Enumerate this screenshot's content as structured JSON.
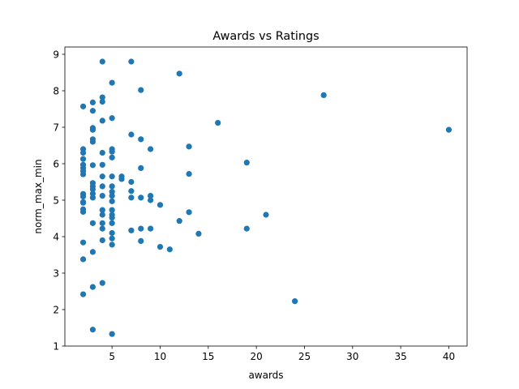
{
  "chart_data": {
    "type": "scatter",
    "title": "Awards vs Ratings",
    "xlabel": "awards",
    "ylabel": "norm_max_min",
    "xlim": [
      0.1,
      41.9
    ],
    "ylim": [
      1.0,
      9.2
    ],
    "xticks": [
      5,
      10,
      15,
      20,
      25,
      30,
      35,
      40
    ],
    "yticks": [
      1,
      2,
      3,
      4,
      5,
      6,
      7,
      8,
      9
    ],
    "grid": false,
    "color": "#1f77b4",
    "series": [
      {
        "points": [
          [
            2,
            7.57
          ],
          [
            2,
            6.4
          ],
          [
            2,
            6.3
          ],
          [
            2,
            6.13
          ],
          [
            2,
            5.97
          ],
          [
            2,
            5.88
          ],
          [
            2,
            5.8
          ],
          [
            2,
            5.71
          ],
          [
            2,
            5.17
          ],
          [
            2,
            5.1
          ],
          [
            2,
            4.95
          ],
          [
            2,
            4.93
          ],
          [
            2,
            4.75
          ],
          [
            2,
            4.68
          ],
          [
            2,
            3.84
          ],
          [
            2,
            3.38
          ],
          [
            2,
            2.42
          ],
          [
            3,
            7.68
          ],
          [
            3,
            7.45
          ],
          [
            3,
            6.98
          ],
          [
            3,
            6.93
          ],
          [
            3,
            6.67
          ],
          [
            3,
            6.6
          ],
          [
            3,
            5.96
          ],
          [
            3,
            5.47
          ],
          [
            3,
            5.38
          ],
          [
            3,
            5.3
          ],
          [
            3,
            5.18
          ],
          [
            3,
            5.07
          ],
          [
            3,
            4.37
          ],
          [
            3,
            3.58
          ],
          [
            3,
            2.62
          ],
          [
            3,
            1.45
          ],
          [
            4,
            8.8
          ],
          [
            4,
            7.82
          ],
          [
            4,
            7.7
          ],
          [
            4,
            7.18
          ],
          [
            4,
            6.3
          ],
          [
            4,
            5.97
          ],
          [
            4,
            5.65
          ],
          [
            4,
            5.38
          ],
          [
            4,
            5.12
          ],
          [
            4,
            4.73
          ],
          [
            4,
            4.6
          ],
          [
            4,
            4.37
          ],
          [
            4,
            4.22
          ],
          [
            4,
            3.9
          ],
          [
            4,
            2.73
          ],
          [
            5,
            8.22
          ],
          [
            5,
            7.25
          ],
          [
            5,
            6.4
          ],
          [
            5,
            6.33
          ],
          [
            5,
            6.17
          ],
          [
            5,
            5.65
          ],
          [
            5,
            5.38
          ],
          [
            5,
            5.23
          ],
          [
            5,
            5.12
          ],
          [
            5,
            4.97
          ],
          [
            5,
            4.73
          ],
          [
            5,
            4.6
          ],
          [
            5,
            4.52
          ],
          [
            5,
            4.37
          ],
          [
            5,
            4.1
          ],
          [
            5,
            3.95
          ],
          [
            5,
            3.78
          ],
          [
            5,
            1.33
          ],
          [
            6,
            5.65
          ],
          [
            6,
            5.58
          ],
          [
            7,
            8.8
          ],
          [
            7,
            6.8
          ],
          [
            7,
            5.5
          ],
          [
            7,
            5.25
          ],
          [
            7,
            5.07
          ],
          [
            7,
            4.17
          ],
          [
            8,
            8.02
          ],
          [
            8,
            6.67
          ],
          [
            8,
            5.88
          ],
          [
            8,
            5.07
          ],
          [
            8,
            4.22
          ],
          [
            8,
            3.88
          ],
          [
            9,
            6.4
          ],
          [
            9,
            5.12
          ],
          [
            9,
            5.0
          ],
          [
            9,
            4.22
          ],
          [
            10,
            4.87
          ],
          [
            10,
            3.72
          ],
          [
            11,
            3.65
          ],
          [
            12,
            8.47
          ],
          [
            12,
            4.43
          ],
          [
            13,
            6.47
          ],
          [
            13,
            5.72
          ],
          [
            13,
            4.67
          ],
          [
            14,
            4.08
          ],
          [
            16,
            7.12
          ],
          [
            19,
            6.03
          ],
          [
            19,
            4.22
          ],
          [
            21,
            4.6
          ],
          [
            24,
            2.23
          ],
          [
            27,
            7.88
          ],
          [
            40,
            6.93
          ]
        ]
      }
    ]
  }
}
